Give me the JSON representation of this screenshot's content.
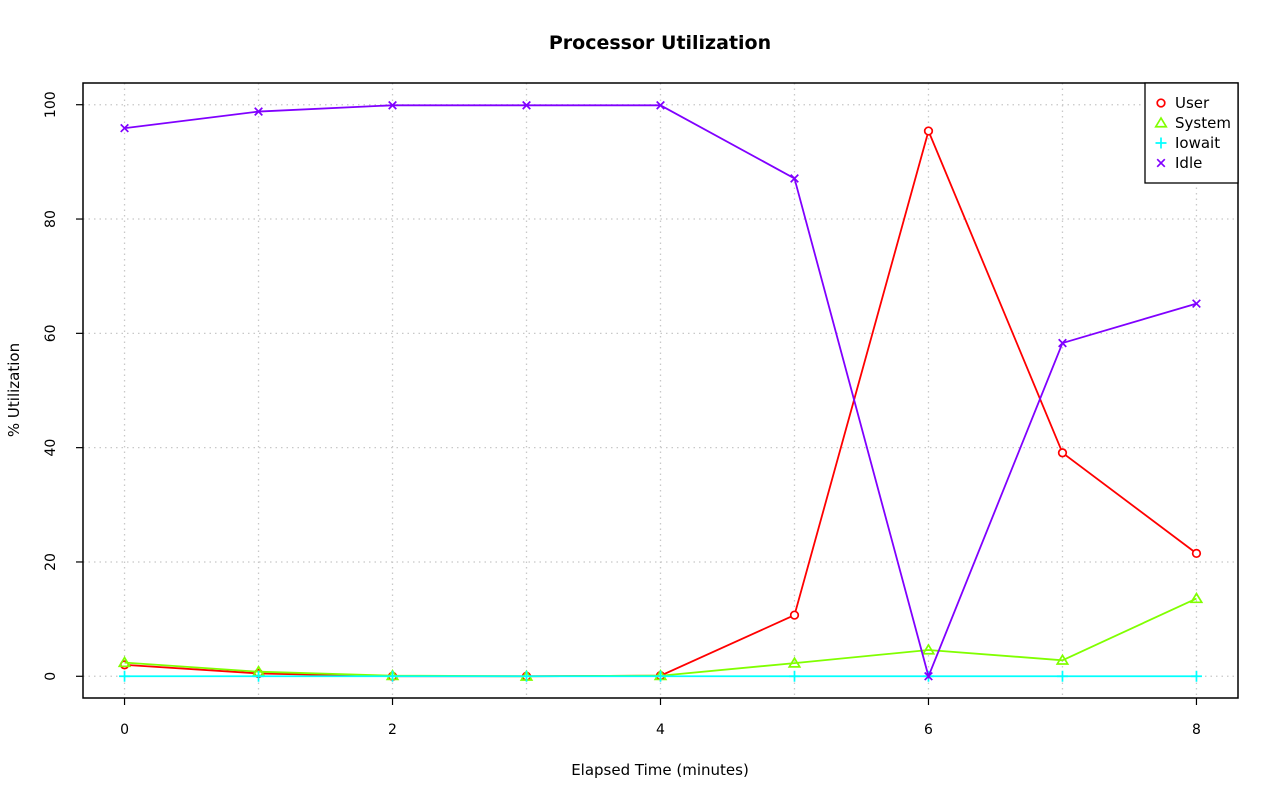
{
  "chart_data": {
    "type": "line",
    "title": "Processor Utilization",
    "xlabel": "Elapsed Time (minutes)",
    "ylabel": "% Utilization",
    "xlim": [
      -0.31,
      8.31
    ],
    "ylim": [
      -3.8,
      103.8
    ],
    "xticks": [
      0,
      2,
      4,
      6,
      8
    ],
    "yticks": [
      0,
      20,
      40,
      60,
      80,
      100
    ],
    "grid": true,
    "legend_position": "top-right",
    "x": [
      0,
      1,
      2,
      3,
      4,
      5,
      6,
      7,
      8
    ],
    "series": [
      {
        "name": "User",
        "color": "#ff0000",
        "marker": "circle",
        "values": [
          2.0,
          0.5,
          0.0,
          0.0,
          0.1,
          10.7,
          95.4,
          39.1,
          21.5
        ]
      },
      {
        "name": "System",
        "color": "#80ff00",
        "marker": "triangle",
        "values": [
          2.4,
          0.8,
          0.1,
          0.0,
          0.1,
          2.3,
          4.6,
          2.8,
          13.6
        ]
      },
      {
        "name": "Iowait",
        "color": "#00ffff",
        "marker": "plus",
        "values": [
          0,
          0,
          0,
          0,
          0,
          0,
          0,
          0,
          0
        ]
      },
      {
        "name": "Idle",
        "color": "#8000ff",
        "marker": "cross",
        "values": [
          95.9,
          98.8,
          99.9,
          99.9,
          99.9,
          87.1,
          0.0,
          58.3,
          65.2
        ]
      }
    ]
  }
}
